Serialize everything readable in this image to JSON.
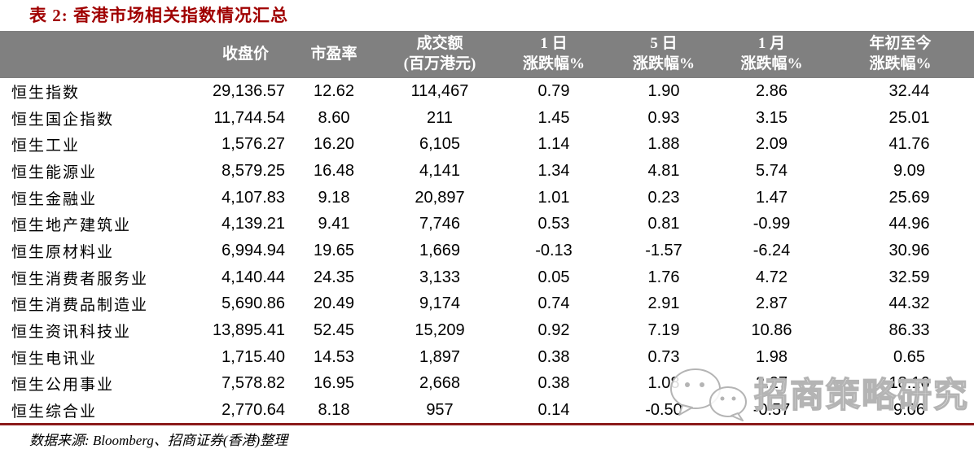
{
  "title": "表 2:  香港市场相关指数情况汇总",
  "table": {
    "column_keys": [
      "name",
      "close",
      "pe",
      "turnover",
      "d1",
      "d5",
      "m1",
      "ytd"
    ],
    "headers": [
      {
        "lines": [
          ""
        ]
      },
      {
        "lines": [
          "收盘价"
        ]
      },
      {
        "lines": [
          "市盈率"
        ]
      },
      {
        "lines": [
          "成交额",
          "(百万港元)"
        ]
      },
      {
        "lines": [
          "1 日",
          "涨跌幅%"
        ]
      },
      {
        "lines": [
          "5 日",
          "涨跌幅%"
        ]
      },
      {
        "lines": [
          "1 月",
          "涨跌幅%"
        ]
      },
      {
        "lines": [
          "年初至今",
          "涨跌幅%"
        ]
      }
    ],
    "rows": [
      {
        "name": "恒生指数",
        "close": "29,136.57",
        "pe": "12.62",
        "turnover": "114,467",
        "d1": "0.79",
        "d5": "1.90",
        "m1": "2.86",
        "ytd": "32.44"
      },
      {
        "name": "恒生国企指数",
        "close": "11,744.54",
        "pe": "8.60",
        "turnover": "211",
        "d1": "1.45",
        "d5": "0.93",
        "m1": "3.15",
        "ytd": "25.01"
      },
      {
        "name": "恒生工业",
        "close": "1,576.27",
        "pe": "16.20",
        "turnover": "6,105",
        "d1": "1.14",
        "d5": "1.88",
        "m1": "2.09",
        "ytd": "41.76"
      },
      {
        "name": "恒生能源业",
        "close": "8,579.25",
        "pe": "16.48",
        "turnover": "4,141",
        "d1": "1.34",
        "d5": "4.81",
        "m1": "5.74",
        "ytd": "9.09"
      },
      {
        "name": "恒生金融业",
        "close": "4,107.83",
        "pe": "9.18",
        "turnover": "20,897",
        "d1": "1.01",
        "d5": "0.23",
        "m1": "1.47",
        "ytd": "25.69"
      },
      {
        "name": "恒生地产建筑业",
        "close": "4,139.21",
        "pe": "9.41",
        "turnover": "7,746",
        "d1": "0.53",
        "d5": "0.81",
        "m1": "-0.99",
        "ytd": "44.96"
      },
      {
        "name": "恒生原材料业",
        "close": "6,994.94",
        "pe": "19.65",
        "turnover": "1,669",
        "d1": "-0.13",
        "d5": "-1.57",
        "m1": "-6.24",
        "ytd": "30.96"
      },
      {
        "name": "恒生消费者服务业",
        "close": "4,140.44",
        "pe": "24.35",
        "turnover": "3,133",
        "d1": "0.05",
        "d5": "1.76",
        "m1": "4.72",
        "ytd": "32.59"
      },
      {
        "name": "恒生消费品制造业",
        "close": "5,690.86",
        "pe": "20.49",
        "turnover": "9,174",
        "d1": "0.74",
        "d5": "2.91",
        "m1": "2.87",
        "ytd": "44.32"
      },
      {
        "name": "恒生资讯科技业",
        "close": "13,895.41",
        "pe": "52.45",
        "turnover": "15,209",
        "d1": "0.92",
        "d5": "7.19",
        "m1": "10.86",
        "ytd": "86.33"
      },
      {
        "name": "恒生电讯业",
        "close": "1,715.40",
        "pe": "14.53",
        "turnover": "1,897",
        "d1": "0.38",
        "d5": "0.73",
        "m1": "1.98",
        "ytd": "0.65"
      },
      {
        "name": "恒生公用事业",
        "close": "7,578.82",
        "pe": "16.95",
        "turnover": "2,668",
        "d1": "0.38",
        "d5": "1.08",
        "m1": "2.27",
        "ytd": "18.16"
      },
      {
        "name": "恒生综合业",
        "close": "2,770.64",
        "pe": "8.18",
        "turnover": "957",
        "d1": "0.14",
        "d5": "-0.50",
        "m1": "-0.57",
        "ytd": "9.06"
      }
    ]
  },
  "footer": {
    "source": "数据来源:  Bloomberg、招商证券(香港)整理"
  },
  "watermark": {
    "icon": "wechat-icon",
    "text": "招商策略研究"
  },
  "colors": {
    "title_red": "#A00000",
    "header_bg": "#808080",
    "header_text": "#FFFFFF",
    "rule_maroon": "#8B1A1A",
    "watermark_outline": "#B4B4B4",
    "body_text": "#000000"
  }
}
